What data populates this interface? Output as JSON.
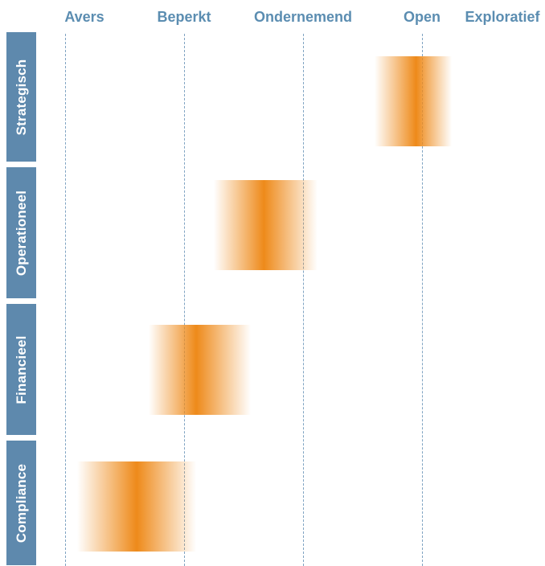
{
  "columns": [
    {
      "label": "Avers"
    },
    {
      "label": "Beperkt"
    },
    {
      "label": "Ondernemend"
    },
    {
      "label": "Open"
    },
    {
      "label": "Exploratief"
    }
  ],
  "rows": [
    {
      "label": "Strategisch",
      "appetite_from": 3.6,
      "appetite_to": 4.25,
      "appetite_peak": 3.95
    },
    {
      "label": "Operationeel",
      "appetite_from": 2.25,
      "appetite_to": 3.12,
      "appetite_peak": 2.67
    },
    {
      "label": "Financieel",
      "appetite_from": 1.7,
      "appetite_to": 2.56,
      "appetite_peak": 2.1
    },
    {
      "label": "Compliance",
      "appetite_from": 1.1,
      "appetite_to": 2.1,
      "appetite_peak": 1.6
    }
  ],
  "colors": {
    "header_text": "#5b8db1",
    "row_tab": "#5e89ad",
    "row_text": "#ffffff",
    "gridline": "#7fa3c2",
    "band": "#ee8a1a"
  }
}
